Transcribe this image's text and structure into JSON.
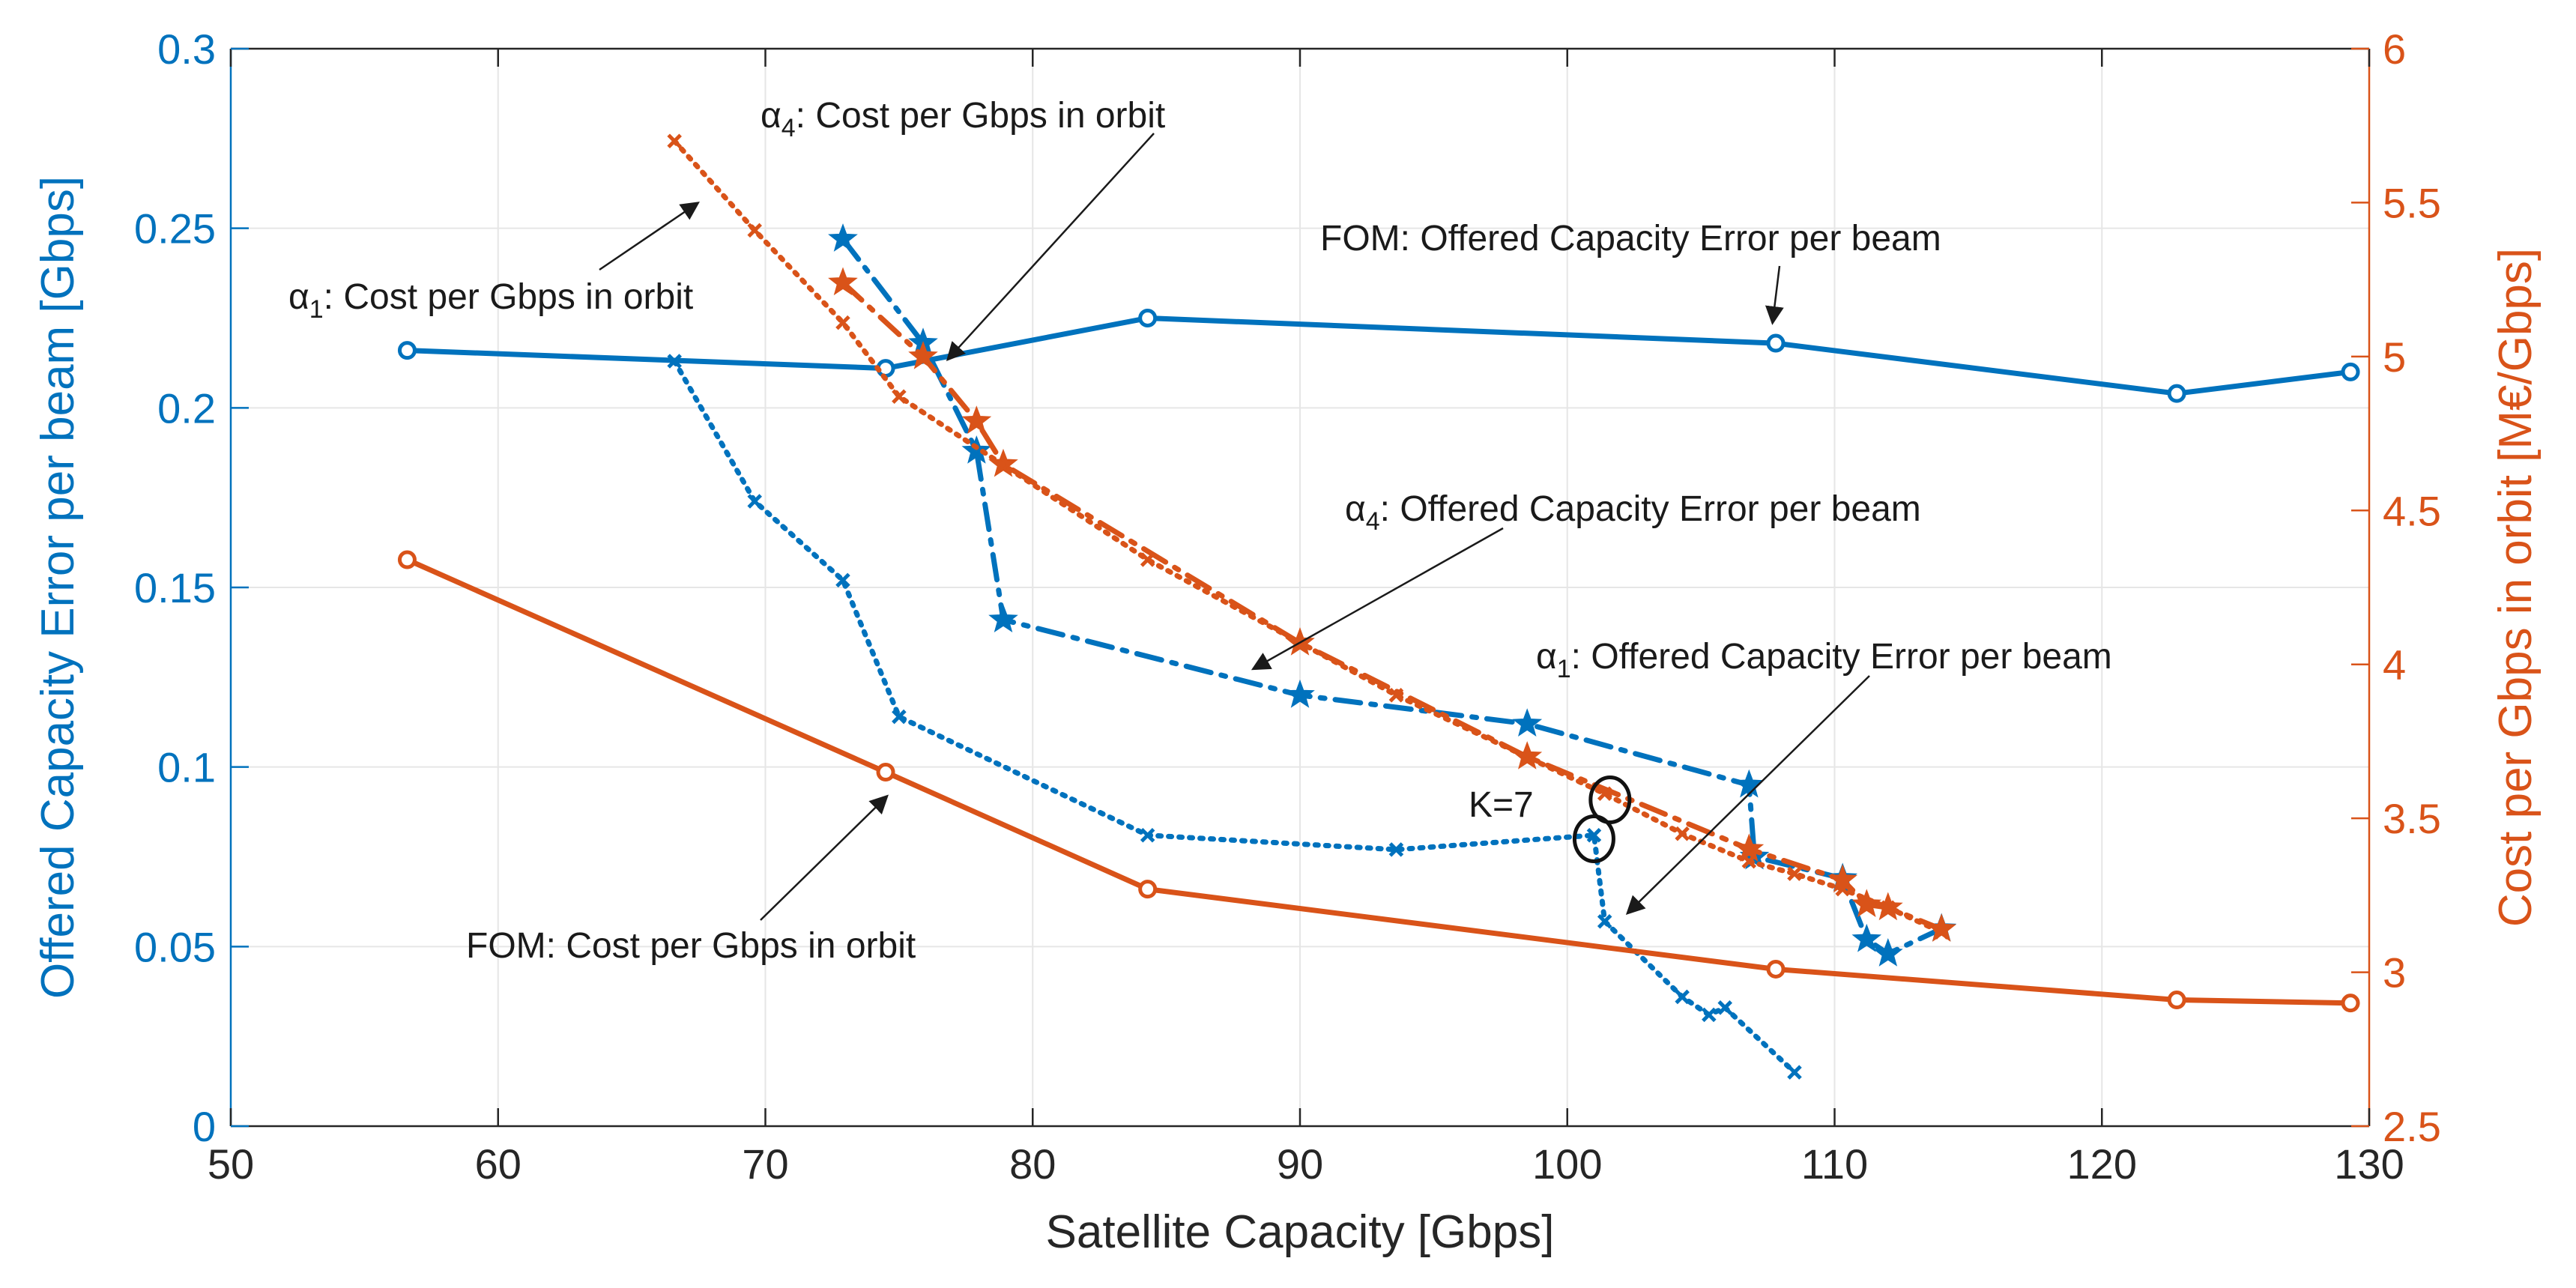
{
  "chart_data": {
    "type": "line",
    "xlabel": "Satellite Capacity [Gbps]",
    "ylabel_left": "Offered Capacity Error per beam [Gbps]",
    "ylabel_right": "Cost per Gbps in orbit [M€/Gbps]",
    "xlim": [
      50,
      130
    ],
    "ylim_left": [
      0,
      0.3
    ],
    "ylim_right": [
      2.5,
      6
    ],
    "xticks": [
      50,
      60,
      70,
      80,
      90,
      100,
      110,
      120,
      130
    ],
    "yticks_left": [
      0,
      0.05,
      0.1,
      0.15,
      0.2,
      0.25,
      0.3
    ],
    "yticks_right": [
      2.5,
      3,
      3.5,
      4,
      4.5,
      5,
      5.5,
      6
    ],
    "xtick_labels": [
      "50",
      "60",
      "70",
      "80",
      "90",
      "100",
      "110",
      "120",
      "130"
    ],
    "ytick_labels_left": [
      "0",
      "0.05",
      "0.1",
      "0.15",
      "0.2",
      "0.25",
      "0.3"
    ],
    "ytick_labels_right": [
      "2.5",
      "3",
      "3.5",
      "4",
      "4.5",
      "5",
      "5.5",
      "6"
    ],
    "grid": true,
    "colors": {
      "left_axis": "#0072BD",
      "right_axis": "#D95319",
      "text": "#262626"
    },
    "series": [
      {
        "name": "FOM: Offered Capacity Error per beam",
        "axis": "left",
        "style": "solid",
        "marker": "circle",
        "color": "#0072BD",
        "x": [
          56.6,
          74.5,
          84.3,
          107.8,
          122.8,
          129.3
        ],
        "y": [
          0.216,
          0.211,
          0.225,
          0.218,
          0.204,
          0.21
        ]
      },
      {
        "name": "α4: Offered Capacity Error per beam",
        "axis": "left",
        "style": "dashdot",
        "marker": "star",
        "color": "#0072BD",
        "x": [
          72.9,
          75.9,
          77.9,
          78.9,
          90.0,
          98.5,
          106.8,
          107.0,
          110.3,
          111.2,
          112.0,
          114.0
        ],
        "y": [
          0.247,
          0.218,
          0.188,
          0.141,
          0.12,
          0.112,
          0.095,
          0.075,
          0.069,
          0.052,
          0.048,
          0.055
        ]
      },
      {
        "name": "α1: Offered Capacity Error per beam",
        "axis": "left",
        "style": "dotted",
        "marker": "x",
        "color": "#0072BD",
        "x": [
          66.6,
          69.6,
          72.9,
          75.0,
          84.3,
          93.6,
          101.0,
          101.4,
          104.3,
          105.3,
          105.9,
          108.5
        ],
        "y": [
          0.213,
          0.174,
          0.152,
          0.114,
          0.081,
          0.077,
          0.081,
          0.057,
          0.036,
          0.031,
          0.033,
          0.015
        ]
      },
      {
        "name": "FOM: Cost per Gbps in orbit",
        "axis": "right",
        "style": "solid",
        "marker": "circle",
        "color": "#D95319",
        "x": [
          56.6,
          74.5,
          84.3,
          107.8,
          122.8,
          129.3
        ],
        "y": [
          4.34,
          3.65,
          3.27,
          3.01,
          2.91,
          2.9
        ]
      },
      {
        "name": "α4: Cost per Gbps in orbit",
        "axis": "right",
        "style": "dashdot",
        "marker": "star",
        "color": "#D95319",
        "x": [
          72.9,
          75.9,
          77.9,
          78.9,
          90.0,
          98.5,
          106.8,
          110.3,
          111.2,
          112.0,
          114.0
        ],
        "y": [
          5.24,
          5.0,
          4.79,
          4.65,
          4.07,
          3.7,
          3.4,
          3.3,
          3.22,
          3.21,
          3.14
        ]
      },
      {
        "name": "α1: Cost per Gbps in orbit",
        "axis": "right",
        "style": "dotted",
        "marker": "x",
        "color": "#D95319",
        "x": [
          66.6,
          69.6,
          72.9,
          75.0,
          84.3,
          93.6,
          101.4,
          104.3,
          106.8,
          108.5,
          110.3,
          112.0,
          114.0
        ],
        "y": [
          5.7,
          5.41,
          5.11,
          4.87,
          4.34,
          3.9,
          3.58,
          3.45,
          3.36,
          3.32,
          3.27,
          3.21,
          3.13
        ]
      }
    ],
    "annotations": [
      {
        "id": "ann-a4-cost",
        "sym": "α",
        "sub": "4",
        "rest": ": Cost per Gbps in orbit",
        "target": {
          "x": 76.4,
          "y": 4.95,
          "axis": "right"
        }
      },
      {
        "id": "ann-a1-cost",
        "sym": "α",
        "sub": "1",
        "rest": ": Cost per Gbps in orbit",
        "target": {
          "x": 68.0,
          "y": 5.53,
          "axis": "right"
        }
      },
      {
        "id": "ann-fom-ocerr",
        "sym": "",
        "sub": "",
        "rest": "FOM: Offered Capacity Error per beam",
        "target": {
          "x": 107.6,
          "y": 0.219,
          "axis": "left"
        }
      },
      {
        "id": "ann-a4-ocerr",
        "sym": "α",
        "sub": "4",
        "rest": ": Offered Capacity Error per beam",
        "target": {
          "x": 87.7,
          "y": 0.125,
          "axis": "left"
        }
      },
      {
        "id": "ann-a1-ocerr",
        "sym": "α",
        "sub": "1",
        "rest": ": Offered Capacity Error per beam",
        "target": {
          "x": 101.8,
          "y": 0.056,
          "axis": "left"
        }
      },
      {
        "id": "ann-fom-cost",
        "sym": "",
        "sub": "",
        "rest": "FOM: Cost per Gbps in orbit",
        "target": {
          "x": 75.0,
          "y": 3.61,
          "axis": "right"
        }
      },
      {
        "id": "ann-k7",
        "sym": "",
        "sub": "",
        "rest": "K=7",
        "target": null
      }
    ],
    "highlight_circles": [
      {
        "x": 101.6,
        "y": 3.56,
        "axis": "right"
      },
      {
        "x": 101.0,
        "y": 0.08,
        "axis": "left"
      }
    ]
  }
}
